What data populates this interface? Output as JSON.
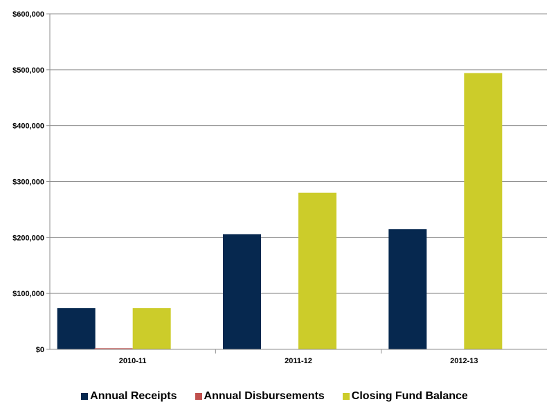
{
  "chart_data": {
    "type": "bar",
    "categories": [
      "2010-11",
      "2011-12",
      "2012-13"
    ],
    "series": [
      {
        "name": "Annual Receipts",
        "color": "#06284f",
        "values": [
          74000,
          206000,
          215000
        ]
      },
      {
        "name": "Annual Disbursements",
        "color": "#c0504d",
        "values": [
          2000,
          0,
          0
        ]
      },
      {
        "name": "Closing Fund Balance",
        "color": "#cccc2a",
        "values": [
          74000,
          280000,
          494000
        ]
      }
    ],
    "yticks": [
      "$0",
      "$100,000",
      "$200,000",
      "$300,000",
      "$400,000",
      "$500,000",
      "$600,000"
    ],
    "ylim": [
      0,
      600000
    ],
    "grid": true,
    "legend_position": "bottom"
  }
}
